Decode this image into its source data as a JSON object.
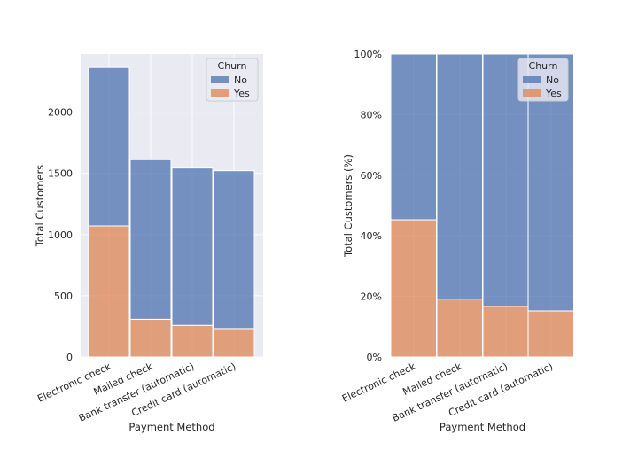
{
  "chart_data": [
    {
      "type": "bar",
      "stacked": true,
      "categories": [
        "Electronic check",
        "Mailed check",
        "Bank transfer (automatic)",
        "Credit card (automatic)"
      ],
      "series": [
        {
          "name": "No",
          "values": [
            1294,
            1304,
            1286,
            1290
          ],
          "color": "#4c72b0"
        },
        {
          "name": "Yes",
          "values": [
            1071,
            308,
            258,
            232
          ],
          "color": "#dd8452"
        }
      ],
      "xlabel": "Payment Method",
      "ylabel": "Total Customers",
      "ylim": [
        0,
        2475
      ],
      "yticks": [
        "0",
        "500",
        "1000",
        "1500",
        "2000"
      ],
      "legend": {
        "title": "Churn",
        "entries": [
          "No",
          "Yes"
        ],
        "placement": "top-right"
      },
      "grid": true
    },
    {
      "type": "bar",
      "stacked": true,
      "normalized": true,
      "categories": [
        "Electronic check",
        "Mailed check",
        "Bank transfer (automatic)",
        "Credit card (automatic)"
      ],
      "series": [
        {
          "name": "No",
          "values": [
            54.7,
            80.9,
            83.3,
            84.8
          ],
          "color": "#4c72b0"
        },
        {
          "name": "Yes",
          "values": [
            45.3,
            19.1,
            16.7,
            15.2
          ],
          "color": "#dd8452"
        }
      ],
      "xlabel": "Payment Method",
      "ylabel": "Total Customers (%)",
      "ylim": [
        0,
        100
      ],
      "yticks": [
        "0%",
        "20%",
        "40%",
        "60%",
        "80%",
        "100%"
      ],
      "legend": {
        "title": "Churn",
        "entries": [
          "No",
          "Yes"
        ],
        "placement": "top-right"
      },
      "grid": true
    }
  ]
}
